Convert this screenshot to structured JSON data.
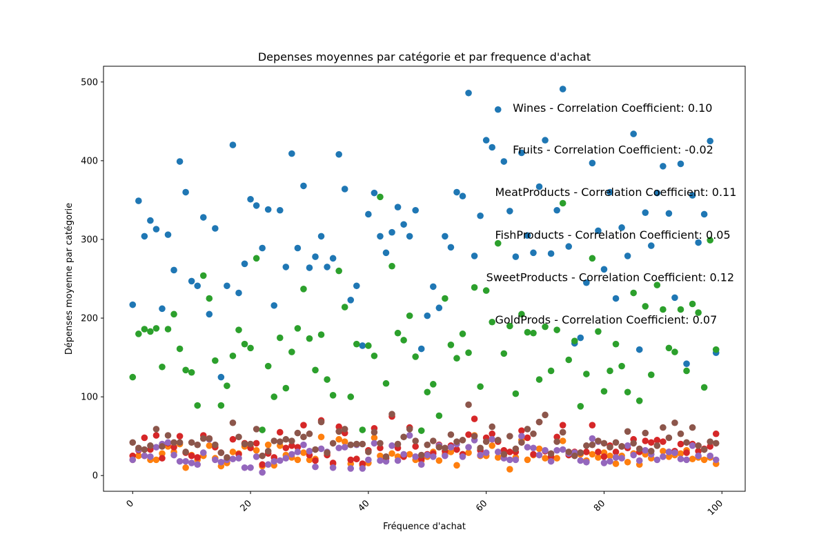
{
  "chart_data": {
    "type": "scatter",
    "title": "Depenses moyennes par catégorie et par frequence d'achat",
    "xlabel": "Fréquence d'achat",
    "ylabel": "Dépenses moyenne par catégorie",
    "xlim": [
      -4.95,
      103.95
    ],
    "ylim": [
      -20,
      520
    ],
    "x_ticks": [
      0,
      20,
      40,
      60,
      80,
      100
    ],
    "y_ticks": [
      0,
      100,
      200,
      300,
      400,
      500
    ],
    "x_tick_rotation": 45,
    "grid": false,
    "x": [
      0,
      1,
      2,
      3,
      4,
      5,
      6,
      7,
      8,
      9,
      10,
      11,
      12,
      13,
      14,
      15,
      16,
      17,
      18,
      19,
      20,
      21,
      22,
      23,
      24,
      25,
      26,
      27,
      28,
      29,
      30,
      31,
      32,
      33,
      34,
      35,
      36,
      37,
      38,
      39,
      40,
      41,
      42,
      43,
      44,
      45,
      46,
      47,
      48,
      49,
      50,
      51,
      52,
      53,
      54,
      55,
      56,
      57,
      58,
      59,
      60,
      61,
      62,
      63,
      64,
      65,
      66,
      67,
      68,
      69,
      70,
      71,
      72,
      73,
      74,
      75,
      76,
      77,
      78,
      79,
      80,
      81,
      82,
      83,
      84,
      85,
      86,
      87,
      88,
      89,
      90,
      91,
      92,
      93,
      94,
      95,
      96,
      97,
      98,
      99
    ],
    "series": [
      {
        "name": "Wines",
        "color": "#1f77b4",
        "values": [
          217,
          349,
          304,
          324,
          313,
          212,
          306,
          261,
          399,
          360,
          247,
          241,
          328,
          205,
          314,
          125,
          241,
          420,
          232,
          269,
          351,
          343,
          289,
          338,
          216,
          337,
          265,
          409,
          289,
          368,
          264,
          278,
          304,
          265,
          276,
          408,
          364,
          223,
          241,
          165,
          332,
          359,
          304,
          283,
          309,
          341,
          319,
          304,
          337,
          161,
          203,
          240,
          213,
          304,
          290,
          360,
          355,
          486,
          279,
          330,
          426,
          417,
          465,
          399,
          336,
          278,
          410,
          305,
          283,
          367,
          426,
          282,
          337,
          491,
          291,
          168,
          175,
          245,
          397,
          311,
          262,
          360,
          225,
          315,
          279,
          434,
          160,
          334,
          292,
          359,
          393,
          333,
          226,
          396,
          142,
          356,
          296,
          332,
          425,
          156
        ]
      },
      {
        "name": "Fruits",
        "color": "#ff7f0e",
        "values": [
          20,
          25,
          25,
          20,
          20,
          28,
          37,
          30,
          40,
          10,
          26,
          20,
          25,
          38,
          22,
          12,
          16,
          30,
          28,
          37,
          36,
          32,
          12,
          39,
          13,
          38,
          26,
          23,
          20,
          29,
          20,
          21,
          49,
          28,
          15,
          46,
          43,
          15,
          21,
          13,
          16,
          48,
          25,
          22,
          28,
          24,
          26,
          27,
          20,
          19,
          24,
          30,
          19,
          27,
          30,
          13,
          27,
          29,
          51,
          25,
          25,
          38,
          23,
          26,
          8,
          23,
          45,
          20,
          26,
          34,
          22,
          21,
          22,
          44,
          27,
          26,
          27,
          19,
          27,
          23,
          29,
          25,
          15,
          25,
          17,
          28,
          14,
          27,
          22,
          38,
          31,
          24,
          26,
          28,
          32,
          21,
          23,
          20,
          23,
          15
        ]
      },
      {
        "name": "MeatProducts",
        "color": "#2ca02c",
        "values": [
          125,
          180,
          186,
          183,
          187,
          138,
          186,
          205,
          161,
          134,
          131,
          89,
          254,
          225,
          146,
          89,
          114,
          152,
          185,
          167,
          162,
          276,
          58,
          139,
          100,
          175,
          111,
          157,
          187,
          237,
          174,
          134,
          179,
          122,
          102,
          260,
          214,
          100,
          167,
          58,
          165,
          152,
          354,
          117,
          266,
          181,
          172,
          203,
          151,
          57,
          106,
          116,
          76,
          225,
          166,
          149,
          180,
          156,
          239,
          113,
          235,
          195,
          295,
          155,
          190,
          104,
          205,
          182,
          181,
          122,
          189,
          133,
          185,
          346,
          147,
          171,
          88,
          129,
          276,
          183,
          107,
          133,
          167,
          139,
          106,
          232,
          95,
          215,
          128,
          242,
          211,
          162,
          157,
          211,
          133,
          218,
          207,
          112,
          299,
          160
        ]
      },
      {
        "name": "FishProducts",
        "color": "#d62728",
        "values": [
          25,
          32,
          48,
          33,
          51,
          22,
          41,
          36,
          50,
          29,
          25,
          23,
          51,
          47,
          36,
          29,
          20,
          46,
          27,
          41,
          35,
          41,
          14,
          28,
          23,
          55,
          35,
          38,
          36,
          64,
          26,
          19,
          70,
          26,
          16,
          62,
          54,
          20,
          21,
          15,
          32,
          60,
          35,
          22,
          75,
          35,
          24,
          61,
          37,
          21,
          27,
          28,
          39,
          31,
          38,
          33,
          27,
          52,
          72,
          32,
          48,
          53,
          43,
          32,
          30,
          30,
          57,
          48,
          27,
          68,
          31,
          24,
          49,
          64,
          26,
          30,
          29,
          30,
          64,
          30,
          24,
          38,
          30,
          37,
          35,
          46,
          30,
          44,
          42,
          45,
          43,
          30,
          31,
          40,
          29,
          40,
          31,
          34,
          37,
          53
        ]
      },
      {
        "name": "SweetProducts",
        "color": "#9467bd",
        "values": [
          20,
          33,
          25,
          24,
          36,
          40,
          42,
          26,
          18,
          18,
          16,
          14,
          29,
          46,
          20,
          17,
          20,
          21,
          22,
          10,
          10,
          24,
          4,
          14,
          18,
          19,
          22,
          27,
          30,
          39,
          31,
          11,
          34,
          30,
          10,
          35,
          36,
          9,
          39,
          9,
          20,
          41,
          19,
          18,
          38,
          19,
          27,
          51,
          24,
          14,
          26,
          24,
          38,
          25,
          36,
          40,
          24,
          36,
          45,
          26,
          29,
          46,
          30,
          22,
          20,
          20,
          50,
          36,
          35,
          26,
          32,
          18,
          32,
          33,
          28,
          29,
          19,
          17,
          47,
          43,
          16,
          18,
          23,
          22,
          38,
          26,
          19,
          32,
          27,
          20,
          24,
          30,
          29,
          21,
          20,
          38,
          25,
          33,
          25,
          20
        ]
      },
      {
        "name": "GoldProds",
        "color": "#8c564b",
        "values": [
          42,
          35,
          33,
          38,
          59,
          37,
          51,
          42,
          42,
          30,
          42,
          39,
          47,
          47,
          39,
          29,
          23,
          67,
          49,
          40,
          40,
          59,
          25,
          31,
          44,
          43,
          46,
          44,
          54,
          49,
          53,
          33,
          68,
          29,
          41,
          56,
          59,
          39,
          40,
          40,
          30,
          55,
          41,
          24,
          78,
          40,
          49,
          59,
          44,
          26,
          39,
          44,
          36,
          35,
          52,
          43,
          45,
          90,
          50,
          35,
          43,
          62,
          45,
          27,
          50,
          34,
          42,
          59,
          53,
          68,
          77,
          28,
          43,
          55,
          30,
          25,
          29,
          38,
          39,
          44,
          41,
          36,
          42,
          37,
          56,
          41,
          34,
          54,
          31,
          38,
          61,
          48,
          67,
          53,
          42,
          61,
          38,
          33,
          43,
          41
        ]
      }
    ],
    "annotations": [
      {
        "text": "Wines - Correlation Coefficient: 0.10",
        "x": 64.5,
        "y": 462
      },
      {
        "text": "Fruits - Correlation Coefficient: -0.02",
        "x": 64.5,
        "y": 409
      },
      {
        "text": "MeatProducts - Correlation Coefficient: 0.11",
        "x": 61.5,
        "y": 355
      },
      {
        "text": "FishProducts - Correlation Coefficient: 0.05",
        "x": 61.5,
        "y": 301
      },
      {
        "text": "SweetProducts - Correlation Coefficient: 0.12",
        "x": 60,
        "y": 247
      },
      {
        "text": "GoldProds - Correlation Coefficient: 0.07",
        "x": 61.5,
        "y": 193
      }
    ]
  }
}
